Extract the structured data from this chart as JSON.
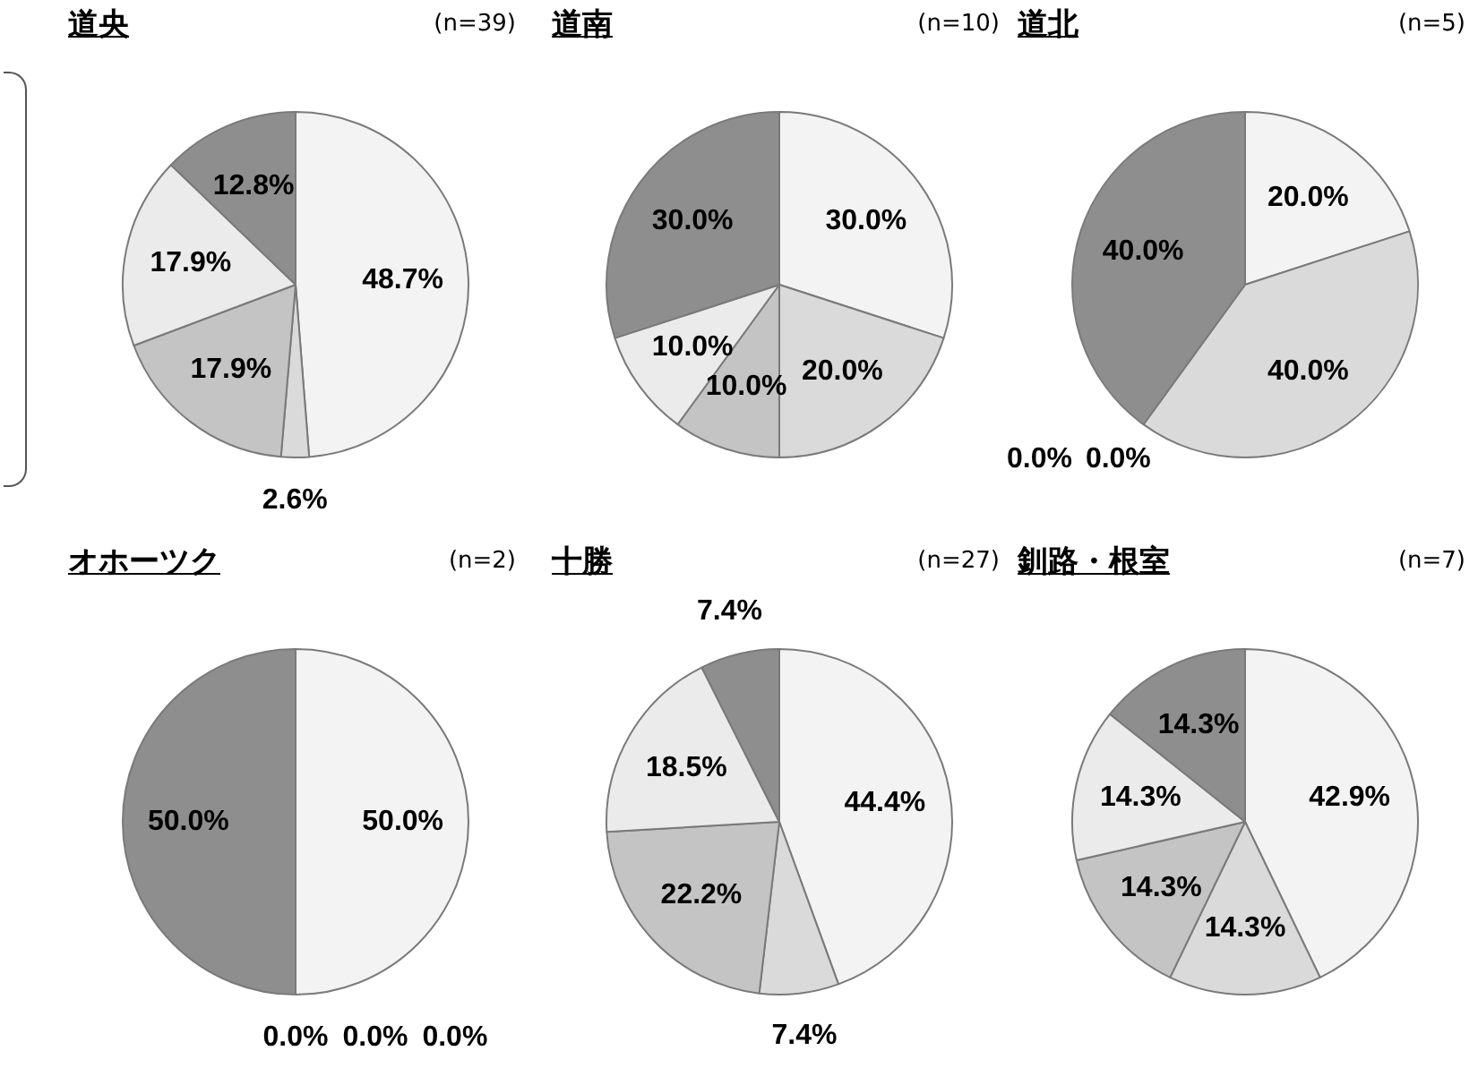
{
  "chart_data": [
    {
      "type": "pie",
      "title": "道央",
      "annotations": [
        "(n=39)"
      ],
      "categories": [
        null,
        null,
        null,
        null,
        null
      ],
      "values": [
        48.7,
        2.6,
        17.9,
        17.9,
        12.8
      ],
      "value_labels": [
        "48.7%",
        "2.6%",
        "17.9%",
        "17.9%",
        "12.8%"
      ],
      "colors": [
        "#f3f3f3",
        "#dadada",
        "#c4c4c4",
        "#ebebeb",
        "#8e8e8e"
      ]
    },
    {
      "type": "pie",
      "title": "道南",
      "annotations": [
        "(n=10)"
      ],
      "categories": [
        null,
        null,
        null,
        null,
        null
      ],
      "values": [
        30.0,
        20.0,
        10.0,
        10.0,
        30.0
      ],
      "value_labels": [
        "30.0%",
        "20.0%",
        "10.0%",
        "10.0%",
        "30.0%"
      ],
      "colors": [
        "#f3f3f3",
        "#dadada",
        "#c4c4c4",
        "#ebebeb",
        "#8e8e8e"
      ]
    },
    {
      "type": "pie",
      "title": "道北",
      "annotations": [
        "(n=5)"
      ],
      "categories": [
        null,
        null,
        null,
        null,
        null
      ],
      "values": [
        20.0,
        40.0,
        0.0,
        0.0,
        40.0
      ],
      "value_labels": [
        "20.0%",
        "40.0%",
        "0.0%",
        "0.0%",
        "40.0%"
      ],
      "colors": [
        "#f3f3f3",
        "#dadada",
        "#c4c4c4",
        "#ebebeb",
        "#8e8e8e"
      ]
    },
    {
      "type": "pie",
      "title": "オホーツク",
      "annotations": [
        "(n=2)"
      ],
      "categories": [
        null,
        null,
        null,
        null,
        null
      ],
      "values": [
        50.0,
        0.0,
        0.0,
        0.0,
        50.0
      ],
      "value_labels": [
        "50.0%",
        "0.0%",
        "0.0%",
        "0.0%",
        "50.0%"
      ],
      "colors": [
        "#f3f3f3",
        "#dadada",
        "#c4c4c4",
        "#ebebeb",
        "#8e8e8e"
      ]
    },
    {
      "type": "pie",
      "title": "十勝",
      "annotations": [
        "(n=27)"
      ],
      "categories": [
        null,
        null,
        null,
        null,
        null
      ],
      "values": [
        44.4,
        7.4,
        22.2,
        18.5,
        7.4
      ],
      "value_labels": [
        "44.4%",
        "7.4%",
        "22.2%",
        "18.5%",
        "7.4%"
      ],
      "colors": [
        "#f3f3f3",
        "#dadada",
        "#c4c4c4",
        "#ebebeb",
        "#8e8e8e"
      ]
    },
    {
      "type": "pie",
      "title": "釧路・根室",
      "annotations": [
        "(n=7)"
      ],
      "categories": [
        null,
        null,
        null,
        null,
        null
      ],
      "values": [
        42.9,
        14.3,
        14.3,
        14.3,
        14.3
      ],
      "value_labels": [
        "42.9%",
        "14.3%",
        "14.3%",
        "14.3%",
        "14.3%"
      ],
      "colors": [
        "#f3f3f3",
        "#dadada",
        "#c4c4c4",
        "#ebebeb",
        "#8e8e8e"
      ]
    }
  ]
}
